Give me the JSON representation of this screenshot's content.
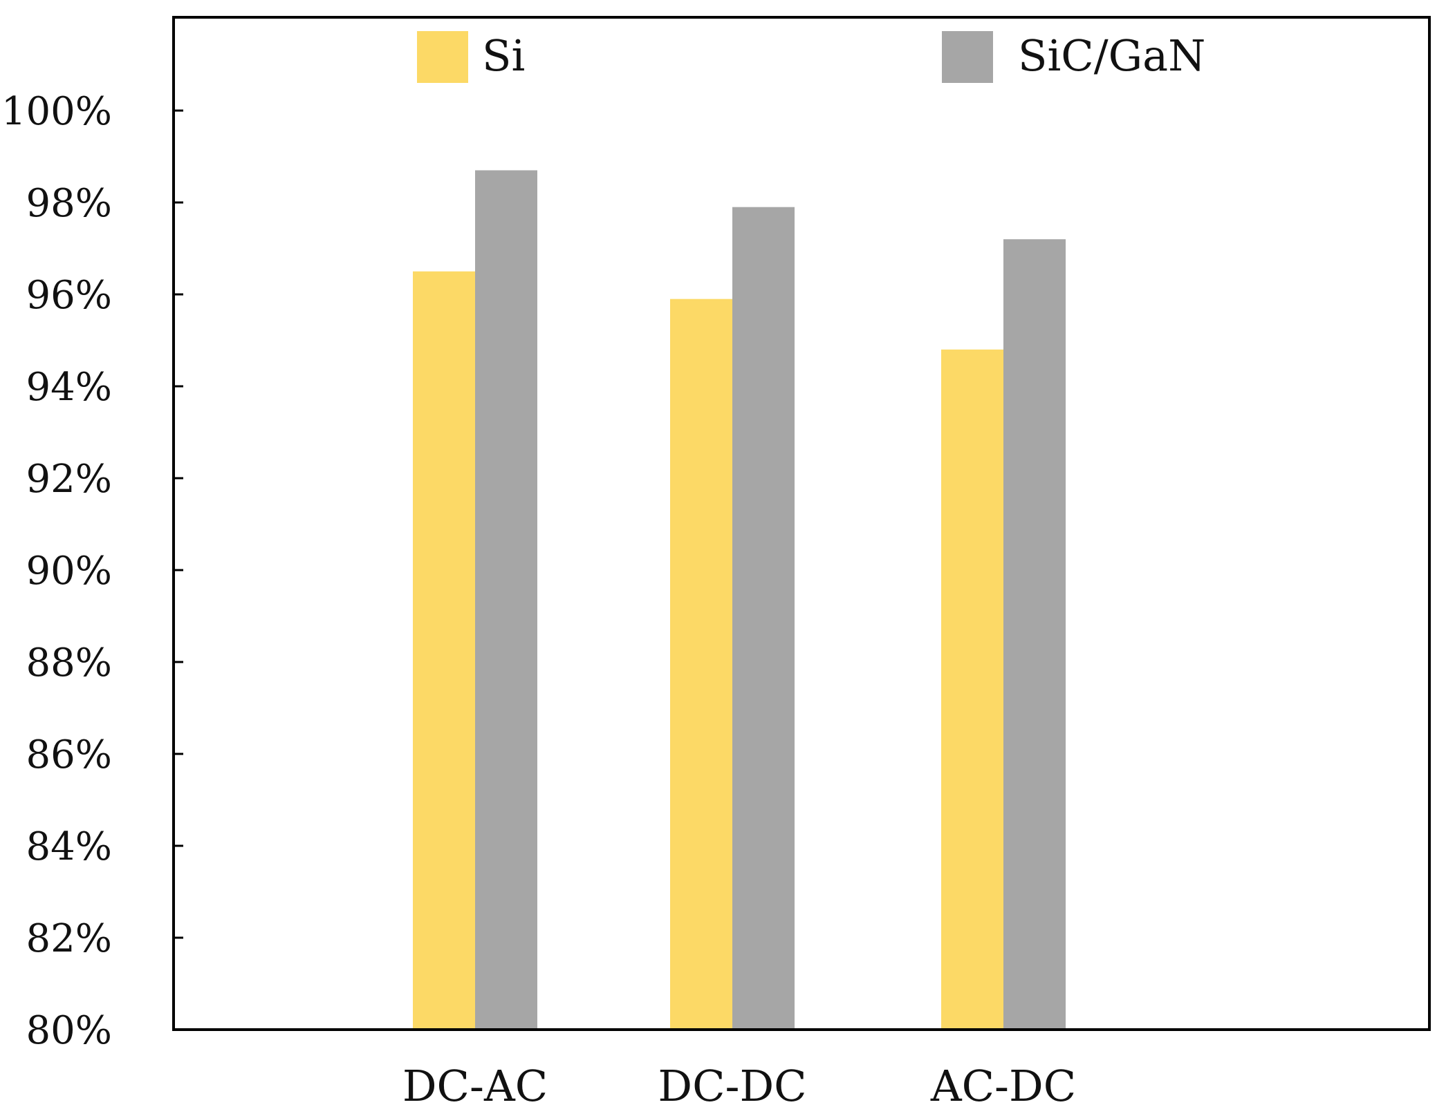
{
  "chart_data": {
    "type": "bar",
    "title": "",
    "xlabel": "",
    "ylabel": "",
    "categories": [
      "DC-AC",
      "DC-DC",
      "AC-DC"
    ],
    "series": [
      {
        "name": "Si",
        "values": [
          96.5,
          95.9,
          94.8
        ],
        "color": "#FCD966"
      },
      {
        "name": "SiC/GaN",
        "values": [
          98.7,
          97.9,
          97.2
        ],
        "color": "#A6A6A6"
      }
    ],
    "ylim": [
      80,
      102
    ],
    "yticks": [
      80,
      82,
      84,
      86,
      88,
      90,
      92,
      94,
      96,
      98,
      100
    ],
    "ytick_labels": [
      "80%",
      "82%",
      "84%",
      "86%",
      "88%",
      "90%",
      "92%",
      "94%",
      "96%",
      "98%",
      "100%"
    ],
    "legend": [
      "Si",
      "SiC/GaN"
    ],
    "legend_position": "top",
    "grid": false
  }
}
